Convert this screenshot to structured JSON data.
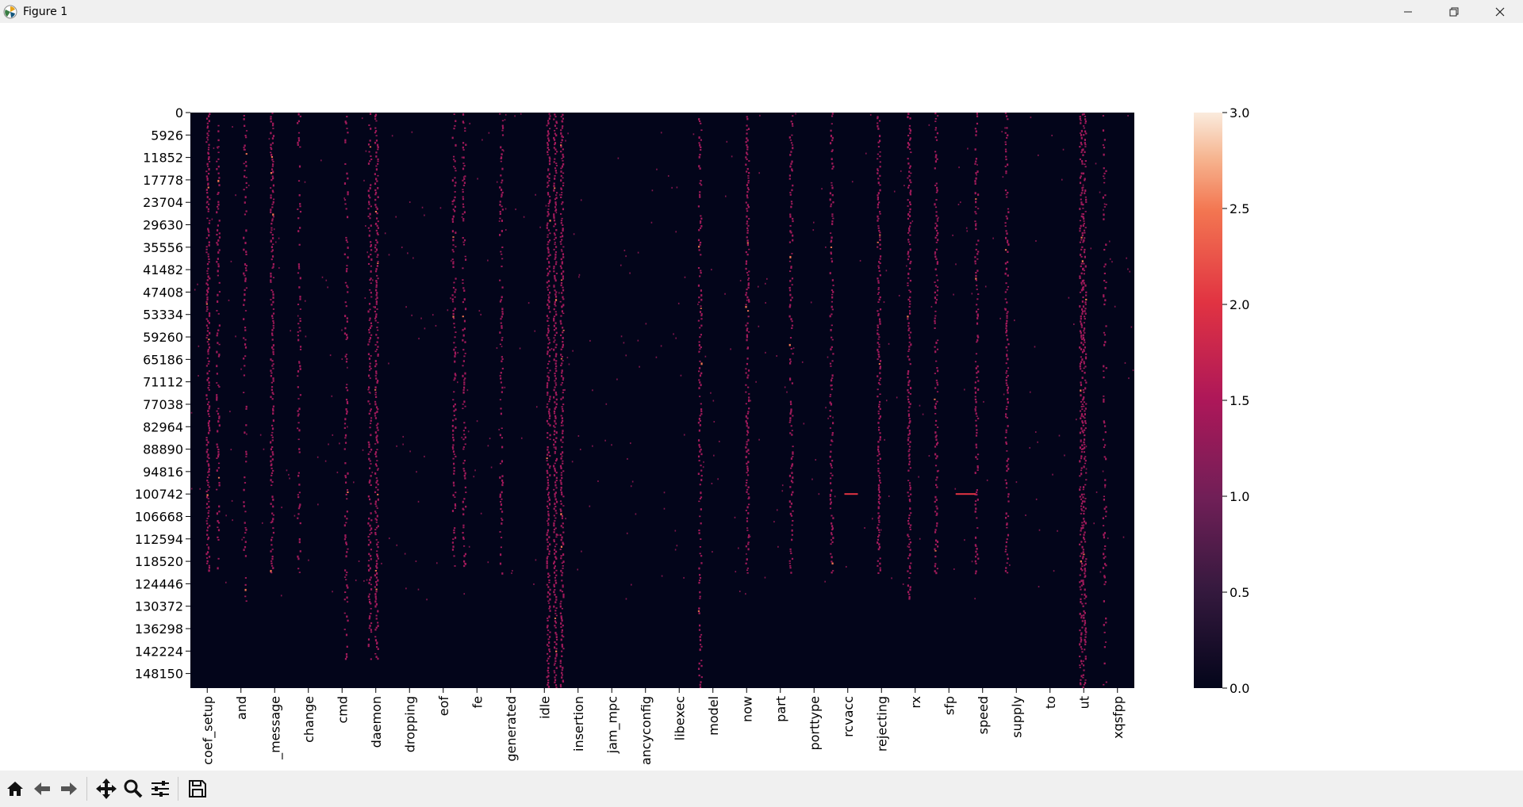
{
  "window": {
    "title": "Figure 1",
    "controls": {
      "minimize": "—",
      "restore": "❐",
      "close": "✕"
    }
  },
  "toolbar": {
    "buttons": [
      "home-icon",
      "back-icon",
      "forward-icon",
      "pan-icon",
      "zoom-icon",
      "configure-subplots-icon",
      "save-icon"
    ]
  },
  "chart_data": {
    "type": "heatmap",
    "colormap": "rocket",
    "colorbar": {
      "min": 0.0,
      "max": 3.0,
      "ticks": [
        "0.0",
        "0.5",
        "1.0",
        "1.5",
        "2.0",
        "2.5",
        "3.0"
      ]
    },
    "y_ticks": [
      "0",
      "5926",
      "11852",
      "17778",
      "23704",
      "29630",
      "35556",
      "41482",
      "47408",
      "53334",
      "59260",
      "65186",
      "71112",
      "77038",
      "82964",
      "88890",
      "94816",
      "100742",
      "106668",
      "112594",
      "118520",
      "124446",
      "130372",
      "136298",
      "142224",
      "148150"
    ],
    "y_range": [
      0,
      152000
    ],
    "x_ticks": [
      "coef_setup",
      "and",
      "_message",
      "change",
      "cmd",
      "daemon",
      "dropping",
      "eof",
      "fe",
      "generated",
      "idle",
      "insertion",
      "jam_mpc",
      "ancyconfig",
      "libexec",
      "model",
      "now",
      "part",
      "porttype",
      "rcvacc",
      "rejecting",
      "rx",
      "sfp",
      "speed",
      "supply",
      "to",
      "ut",
      "xqsfpp"
    ],
    "background_value": 0.0,
    "background_color": "#03051a",
    "dominant_value": 1.0,
    "dominant_color": "#a11a5b",
    "columns": [
      {
        "tick": 0,
        "value": 1.0,
        "density": 0.9,
        "end": 0.8
      },
      {
        "tick": 0.3,
        "value": 1.0,
        "density": 0.5,
        "end": 0.8
      },
      {
        "tick": 1.1,
        "value": 1.0,
        "density": 0.4,
        "end": 0.85
      },
      {
        "tick": 1.9,
        "value": 1.0,
        "density": 0.85,
        "end": 0.8
      },
      {
        "tick": 2.7,
        "value": 1.0,
        "density": 0.35,
        "end": 0.8
      },
      {
        "tick": 4.1,
        "value": 1.0,
        "density": 0.4,
        "end": 0.95
      },
      {
        "tick": 4.8,
        "value": 1.0,
        "density": 0.6,
        "end": 0.95
      },
      {
        "tick": 5.0,
        "value": 1.0,
        "density": 0.9,
        "end": 0.95
      },
      {
        "tick": 7.3,
        "value": 1.0,
        "density": 0.6,
        "end": 0.8
      },
      {
        "tick": 7.6,
        "value": 1.0,
        "density": 0.5,
        "end": 0.8
      },
      {
        "tick": 8.7,
        "value": 1.0,
        "density": 0.5,
        "end": 0.8
      },
      {
        "tick": 10.1,
        "value": 1.0,
        "density": 0.95,
        "end": 1.0
      },
      {
        "tick": 10.3,
        "value": 1.0,
        "density": 0.95,
        "end": 1.0
      },
      {
        "tick": 10.5,
        "value": 1.0,
        "density": 0.9,
        "end": 1.0
      },
      {
        "tick": 14.6,
        "value": 1.0,
        "density": 0.6,
        "end": 1.0
      },
      {
        "tick": 16.0,
        "value": 1.0,
        "density": 0.8,
        "end": 0.8
      },
      {
        "tick": 17.3,
        "value": 1.0,
        "density": 0.6,
        "end": 0.8
      },
      {
        "tick": 18.5,
        "value": 1.0,
        "density": 0.6,
        "end": 0.8
      },
      {
        "tick": 19.9,
        "value": 1.0,
        "density": 0.85,
        "end": 0.8
      },
      {
        "tick": 20.8,
        "value": 1.0,
        "density": 0.8,
        "end": 0.85
      },
      {
        "tick": 21.6,
        "value": 1.0,
        "density": 0.6,
        "end": 0.8
      },
      {
        "tick": 22.8,
        "value": 1.0,
        "density": 0.6,
        "end": 0.8
      },
      {
        "tick": 23.7,
        "value": 1.0,
        "density": 0.6,
        "end": 0.8
      },
      {
        "tick": 25.9,
        "value": 1.0,
        "density": 0.7,
        "end": 1.0
      },
      {
        "tick": 26.0,
        "value": 1.0,
        "density": 0.8,
        "end": 1.0
      },
      {
        "tick": 26.6,
        "value": 1.0,
        "density": 0.4,
        "end": 1.0
      }
    ],
    "horizontal_bands": [
      {
        "y": 100742,
        "from_tick": 18.9,
        "to_tick": 19.3
      },
      {
        "y": 100742,
        "from_tick": 22.2,
        "to_tick": 22.8
      }
    ]
  }
}
